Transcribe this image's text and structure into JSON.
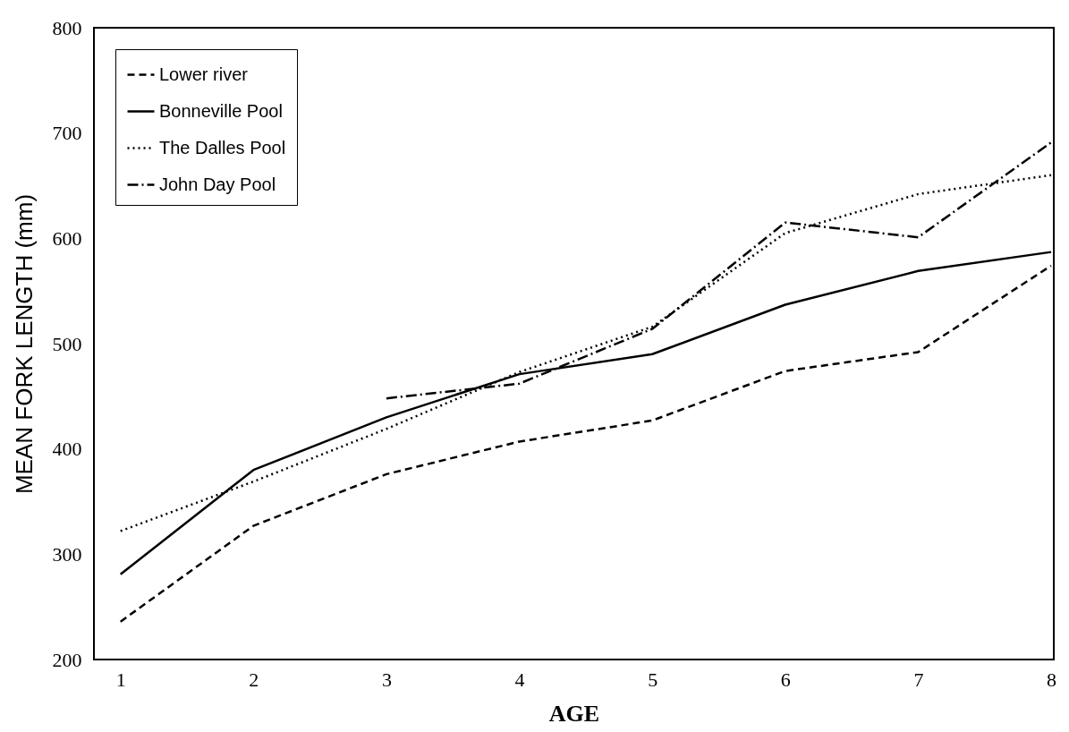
{
  "chart_data": {
    "type": "line",
    "xlabel": "AGE",
    "ylabel": "MEAN FORK LENGTH (mm)",
    "x": [
      1,
      2,
      3,
      4,
      5,
      6,
      7,
      8
    ],
    "xlim": [
      0.8,
      8.02
    ],
    "xticks": [
      1,
      2,
      3,
      4,
      5,
      6,
      7,
      8
    ],
    "ylim": [
      200,
      800
    ],
    "yticks": [
      200,
      300,
      400,
      500,
      600,
      700,
      800
    ],
    "legend": "top left",
    "grid": false,
    "series": [
      {
        "name": "Lower river",
        "color": "#000000",
        "line_style": "dashed",
        "values": [
          236,
          327,
          376,
          407,
          427,
          474,
          492,
          574
        ]
      },
      {
        "name": "Bonneville Pool",
        "color": "#000000",
        "line_style": "solid",
        "values": [
          281,
          380,
          430,
          471,
          490,
          537,
          569,
          587
        ]
      },
      {
        "name": "The Dalles Pool",
        "color": "#000000",
        "line_style": "dotted",
        "values": [
          322,
          369,
          419,
          473,
          516,
          605,
          642,
          660
        ]
      },
      {
        "name": "John Day Pool",
        "color": "#000000",
        "line_style": "dashdot",
        "values": [
          null,
          null,
          448,
          462,
          514,
          615,
          601,
          691
        ]
      }
    ]
  }
}
